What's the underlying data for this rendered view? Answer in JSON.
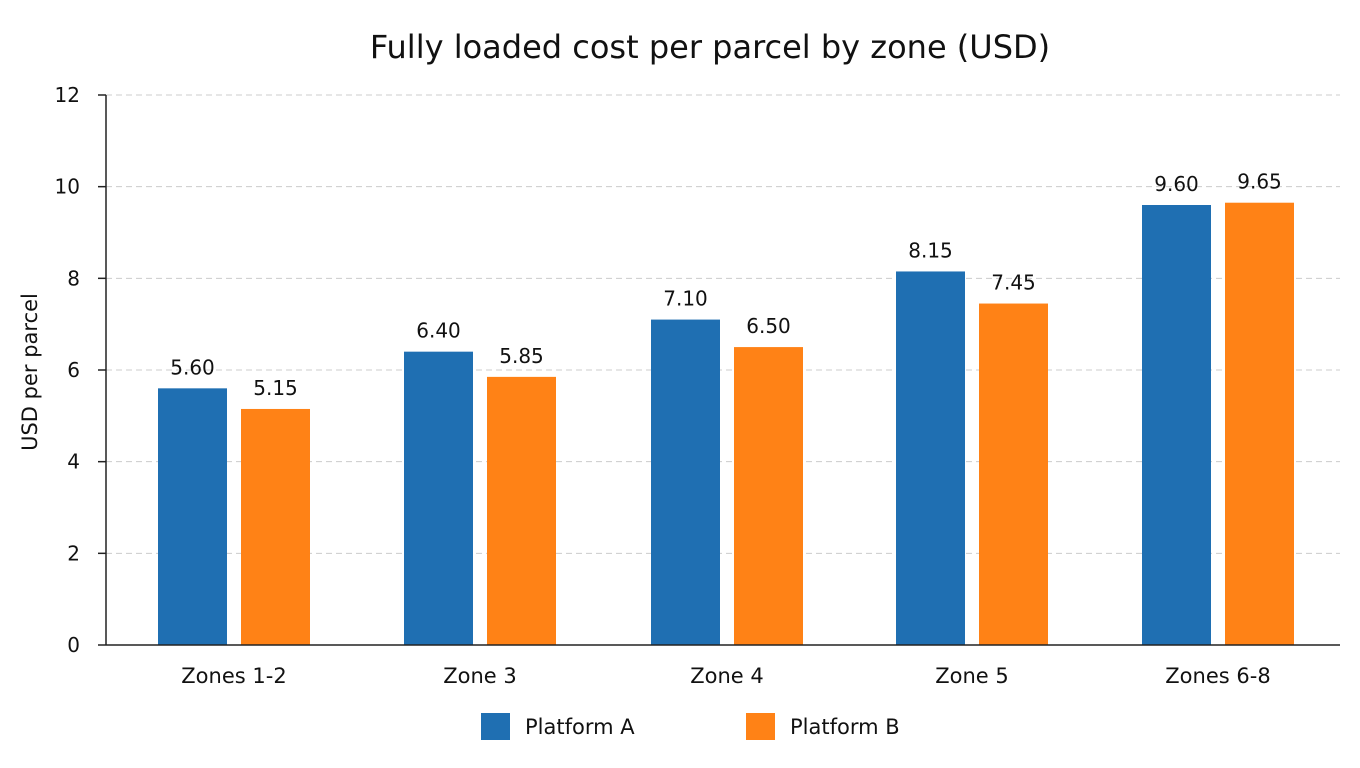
{
  "chart_data": {
    "type": "bar",
    "title": "Fully loaded cost per parcel by zone (USD)",
    "xlabel": "",
    "ylabel": "USD per parcel",
    "categories": [
      "Zones 1-2",
      "Zone 3",
      "Zone 4",
      "Zone 5",
      "Zones 6-8"
    ],
    "series": [
      {
        "name": "Platform A",
        "color": "#1f6fb2",
        "values": [
          5.6,
          6.4,
          7.1,
          8.15,
          9.6
        ]
      },
      {
        "name": "Platform B",
        "color": "#ff8216",
        "values": [
          5.15,
          5.85,
          6.5,
          7.45,
          9.65
        ]
      }
    ],
    "value_labels": [
      [
        "5.60",
        "6.40",
        "7.10",
        "8.15",
        "9.60"
      ],
      [
        "5.15",
        "5.85",
        "6.50",
        "7.45",
        "9.65"
      ]
    ],
    "ylim": [
      0,
      12
    ],
    "yticks": [
      0,
      2,
      4,
      6,
      8,
      10,
      12
    ],
    "grid": true,
    "legend_position": "bottom-center"
  }
}
